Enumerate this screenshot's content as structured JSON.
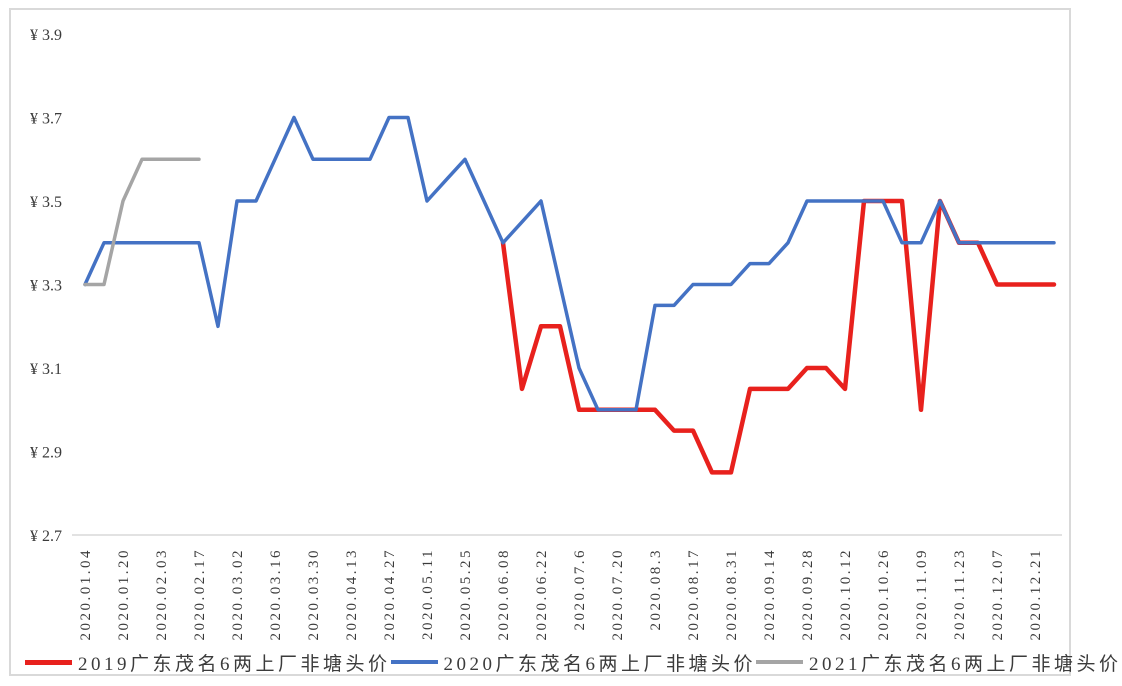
{
  "figure": {
    "background": "#ffffff",
    "border_color": "#d9d9d9",
    "axis_line_color": "#d9d9d9",
    "text_color": "#3b3b3b"
  },
  "chart_data": {
    "type": "line",
    "title": "",
    "xlabel": "",
    "ylabel": "",
    "grid": false,
    "legend_position": "bottom",
    "y_axis": {
      "min": 2.7,
      "max": 3.9,
      "tick_prefix": "¥ ",
      "ticks": [
        {
          "label": "¥ 3.9",
          "value": 3.9
        },
        {
          "label": "¥ 3.7",
          "value": 3.7
        },
        {
          "label": "¥ 3.5",
          "value": 3.5
        },
        {
          "label": "¥ 3.3",
          "value": 3.3
        },
        {
          "label": "¥ 3.1",
          "value": 3.1
        },
        {
          "label": "¥ 2.9",
          "value": 2.9
        },
        {
          "label": "¥ 2.7",
          "value": 2.7
        }
      ]
    },
    "x_labels": [
      "2020.01.04",
      "2020.01.20",
      "2020.02.03",
      "2020.02.17",
      "2020.03.02",
      "2020.03.16",
      "2020.03.30",
      "2020.04.13",
      "2020.04.27",
      "2020.05.11",
      "2020.05.25",
      "2020.06.08",
      "2020.06.22",
      "2020.07.6",
      "2020.07.20",
      "2020.08.3",
      "2020.08.17",
      "2020.08.31",
      "2020.09.14",
      "2020.09.28",
      "2020.10.12",
      "2020.10.26",
      "2020.11.09",
      "2020.11.23",
      "2020.12.07",
      "2020.12.21"
    ],
    "points_per_label_gap": 2,
    "series": [
      {
        "name": "2019广东茂名6两上厂非塘头价",
        "color": "#e8211d",
        "values": [
          null,
          null,
          null,
          null,
          null,
          null,
          null,
          null,
          null,
          null,
          null,
          null,
          null,
          null,
          null,
          null,
          null,
          null,
          null,
          null,
          null,
          null,
          3.4,
          3.05,
          3.2,
          3.2,
          3.0,
          3.0,
          3.0,
          3.0,
          3.0,
          2.95,
          2.95,
          2.85,
          2.85,
          3.05,
          3.05,
          3.05,
          3.1,
          3.1,
          3.05,
          3.5,
          3.5,
          3.5,
          3.0,
          3.5,
          3.4,
          3.4,
          3.3,
          3.3,
          3.3,
          3.3
        ]
      },
      {
        "name": "2020广东茂名6两上厂非塘头价",
        "color": "#4472c4",
        "values": [
          3.3,
          3.4,
          3.4,
          3.4,
          3.4,
          3.4,
          3.4,
          3.2,
          3.5,
          3.5,
          3.6,
          3.7,
          3.6,
          3.6,
          3.6,
          3.6,
          3.7,
          3.7,
          3.5,
          3.55,
          3.6,
          3.5,
          3.4,
          3.45,
          3.5,
          3.3,
          3.1,
          3.0,
          3.0,
          3.0,
          3.25,
          3.25,
          3.3,
          3.3,
          3.3,
          3.35,
          3.35,
          3.4,
          3.5,
          3.5,
          3.5,
          3.5,
          3.5,
          3.4,
          3.4,
          3.5,
          3.4,
          3.4,
          3.4,
          3.4,
          3.4,
          3.4
        ]
      },
      {
        "name": "2021广东茂名6两上厂非塘头价",
        "color": "#a5a5a5",
        "values": [
          3.3,
          3.3,
          3.5,
          3.6,
          3.6,
          3.6,
          3.6,
          null,
          null,
          null,
          null,
          null,
          null,
          null,
          null,
          null,
          null,
          null,
          null,
          null,
          null,
          null,
          null,
          null,
          null,
          null,
          null,
          null,
          null,
          null,
          null,
          null,
          null,
          null,
          null,
          null,
          null,
          null,
          null,
          null,
          null,
          null,
          null,
          null,
          null,
          null,
          null,
          null,
          null,
          null,
          null,
          null
        ]
      }
    ]
  }
}
